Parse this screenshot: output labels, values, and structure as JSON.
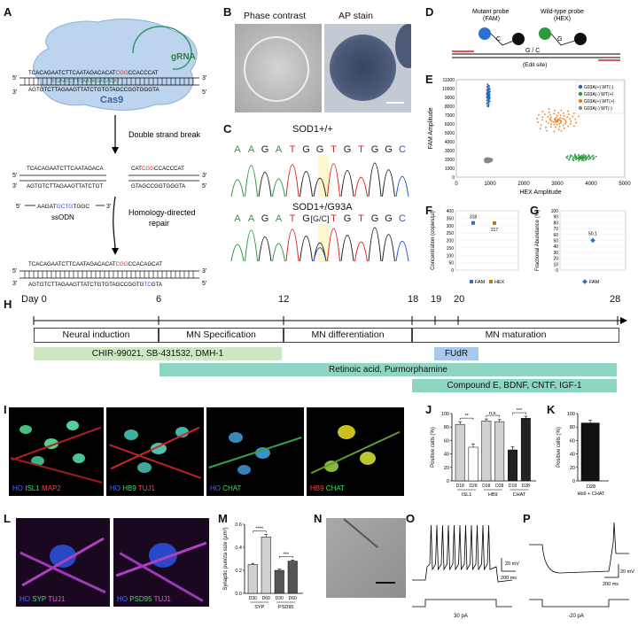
{
  "panels": {
    "A": "A",
    "B": "B",
    "C": "C",
    "D": "D",
    "E": "E",
    "F": "F",
    "G": "G",
    "H": "H",
    "I": "I",
    "J": "J",
    "K": "K",
    "L": "L",
    "M": "M",
    "N": "N",
    "O": "O",
    "P": "P"
  },
  "panelA": {
    "top_seq": "TCACAGAATCTTCAATAGACACATCGGCCACCCAT",
    "top_seq_prefix": "TCACAGAATCTTCAATAGACACAT",
    "top_seq_pam": "CGG",
    "top_seq_suffix": "CCACCCAT",
    "bot_seq": "AGTGTCTTAGAAGTTATCTGTGTAGCCGGTGGGTA",
    "grna_seq": "5'GAATCTTCAATAGACACAT",
    "grna_label": "gRNA",
    "cas9_label": "Cas9",
    "step1": "Double strand break",
    "left_top": "TCACAGAATCTTCAATAGACA",
    "left_bot": "AGTGTCTTAGAAGTTATCTGT",
    "right_top_pre": "CAT",
    "right_top_pam": "CGG",
    "right_top_post": "CCACCCAT",
    "right_bot": "GTAGCCGGTGGGTA",
    "ssodn_pre": "AAGAT",
    "ssodn_mut": "GCTG",
    "ssodn_post": "TGGC",
    "ssodn_label": "ssODN",
    "step2": "Homology-directed",
    "step2b": "repair",
    "final_top_pre": "TCACAGAATCTTCAATAGACACAT",
    "final_top_pam": "CGG",
    "final_top_post": "CCACAGCAT",
    "final_bot_pre": "AGTGTCTTAGAAGTTATCTGTGTAGCCGGTG",
    "final_bot_mut": "TC",
    "final_bot_post": "GTA",
    "five": "5'",
    "three": "3'"
  },
  "panelB": {
    "left": "Phase contrast",
    "right": "AP stain"
  },
  "panelC": {
    "title1": "SOD1+/+",
    "title2": "SOD1+/G93A",
    "bases1": [
      "A",
      "A",
      "G",
      "A",
      "T",
      "G",
      "G",
      "T",
      "G",
      "T",
      "G",
      "G",
      "C"
    ],
    "bases2": [
      "A",
      "A",
      "G",
      "A",
      "T",
      "G",
      "[G/C]",
      "T",
      "G",
      "T",
      "G",
      "G",
      "C"
    ]
  },
  "panelD": {
    "mutant_probe": "Mutant probe",
    "mutant_dye": "(FAM)",
    "wt_probe": "Wild-type probe",
    "wt_dye": "(HEX)",
    "c_label": "C",
    "g_label": "G",
    "gc_label": "G / C",
    "edit_site": "(Edit site)"
  },
  "panelE": {
    "legend": [
      "G93A(+) WT(-)",
      "G93A(-) WT(+)",
      "G93A(+) WT(+)",
      "G93A(-) WT(-)"
    ],
    "legend_colors": [
      "#2266bb",
      "#2a9a3c",
      "#f07a1e",
      "#888888"
    ],
    "xlabel": "HEX Amplitude",
    "ylabel": "FAM Amplitude",
    "xticks": [
      "0",
      "1000",
      "2000",
      "3000",
      "4000",
      "5000"
    ],
    "yticks": [
      "0",
      "1000",
      "2000",
      "3000",
      "4000",
      "5000",
      "6000",
      "7000",
      "8000",
      "9000",
      "10000",
      "11000"
    ]
  },
  "panelF": {
    "ylabel": "Concentration (copies/µl)",
    "yticks": [
      "0",
      "50",
      "100",
      "150",
      "200",
      "250",
      "300",
      "350",
      "400"
    ],
    "fam_label": "318",
    "hex_label": "317",
    "legend_fam": "FAM",
    "legend_hex": "HEX"
  },
  "panelG": {
    "ylabel": "Fractional Abundance (%)",
    "yticks": [
      "0",
      "10",
      "20",
      "30",
      "40",
      "50",
      "60",
      "70",
      "80",
      "90",
      "100"
    ],
    "point_label": "50.1",
    "legend": "FAM"
  },
  "panelH": {
    "day_label": "Day 0",
    "days": [
      "6",
      "12",
      "18",
      "19",
      "20",
      "28"
    ],
    "stages": [
      "Neural induction",
      "MN Specification",
      "MN differentiation",
      "MN maturation"
    ],
    "drugs1": "CHIR-99021, SB-431532, DMH-1",
    "drugs2": "Retinoic acid, Purmorphamine",
    "drugs3": "Compound E, BDNF, CNTF, IGF-1",
    "fudr": "FUdR"
  },
  "panelI": {
    "img1": [
      "HO",
      "ISL1",
      "MAP2"
    ],
    "img2": [
      "HO",
      "HB9",
      "TUJ1"
    ],
    "img3": [
      "HO",
      "CHAT"
    ],
    "img4": [
      "HB9",
      "CHAT"
    ]
  },
  "panelJ": {
    "ylabel": "Positive cells (%)",
    "yticks": [
      "0",
      "20",
      "40",
      "60",
      "80",
      "100"
    ],
    "groups": [
      "ISL1",
      "HB9",
      "CHAT"
    ],
    "sublabels": [
      "D18",
      "D28"
    ],
    "sig": [
      "**",
      "n.s.",
      "***"
    ]
  },
  "panelK": {
    "ylabel": "Positive cells (%)",
    "yticks": [
      "0",
      "20",
      "40",
      "60",
      "80",
      "100"
    ],
    "xlabel1": "D28",
    "xlabel2": "Hb9 + CHAT"
  },
  "panelL": {
    "img1": [
      "HO",
      "SYP",
      "TUJ1"
    ],
    "img2": [
      "HO",
      "PSD95",
      "TUJ1"
    ]
  },
  "panelM": {
    "ylabel": "Synaptic puncta size (µm²)",
    "yticks": [
      "0.0",
      "0.2",
      "0.4",
      "0.6"
    ],
    "groups": [
      "SYP",
      "PSD95"
    ],
    "sublabels": [
      "D30",
      "D60"
    ],
    "sig": [
      "****",
      "***"
    ]
  },
  "panelO": {
    "v_scale": "20 mV",
    "t_scale": "200 ms",
    "stim": "30 pA"
  },
  "panelP": {
    "v_scale": "20 mV",
    "t_scale": "200 ms",
    "stim": "-20 pA"
  },
  "chart_data": [
    {
      "type": "scatter",
      "panel": "E",
      "xlabel": "HEX Amplitude",
      "ylabel": "FAM Amplitude",
      "xlim": [
        0,
        5000
      ],
      "ylim": [
        0,
        11000
      ],
      "series": [
        {
          "name": "G93A(+) WT(-)",
          "clusters": [
            {
              "x": 950,
              "y": 9200
            }
          ]
        },
        {
          "name": "G93A(-) WT(+)",
          "clusters": [
            {
              "x": 3700,
              "y": 2200
            }
          ]
        },
        {
          "name": "G93A(+) WT(+)",
          "clusters": [
            {
              "x": 3000,
              "y": 6400
            }
          ]
        },
        {
          "name": "G93A(-) WT(-)",
          "clusters": [
            {
              "x": 950,
              "y": 1900
            }
          ]
        }
      ]
    },
    {
      "type": "scatter",
      "panel": "F",
      "ylabel": "Concentration (copies/µl)",
      "ylim": [
        0,
        400
      ],
      "series": [
        {
          "name": "FAM",
          "values": [
            318
          ]
        },
        {
          "name": "HEX",
          "values": [
            317
          ]
        }
      ]
    },
    {
      "type": "scatter",
      "panel": "G",
      "ylabel": "Fractional Abundance (%)",
      "ylim": [
        0,
        100
      ],
      "series": [
        {
          "name": "FAM",
          "values": [
            50.1
          ]
        }
      ]
    },
    {
      "type": "bar",
      "panel": "J",
      "ylabel": "Positive cells (%)",
      "ylim": [
        0,
        100
      ],
      "categories": [
        "ISL1 D18",
        "ISL1 D28",
        "HB9 D18",
        "HB9 D28",
        "CHAT D18",
        "CHAT D28"
      ],
      "values": [
        84,
        50,
        89,
        88,
        46,
        93
      ],
      "errors": [
        4,
        5,
        3,
        3,
        5,
        3
      ]
    },
    {
      "type": "bar",
      "panel": "K",
      "ylabel": "Positive cells (%)",
      "ylim": [
        0,
        100
      ],
      "categories": [
        "D28 Hb9 + CHAT"
      ],
      "values": [
        86
      ],
      "errors": [
        4
      ]
    },
    {
      "type": "bar",
      "panel": "M",
      "ylabel": "Synaptic puncta size (µm²)",
      "ylim": [
        0,
        0.6
      ],
      "categories": [
        "SYP D30",
        "SYP D60",
        "PSD95 D30",
        "PSD95 D60"
      ],
      "values": [
        0.25,
        0.49,
        0.2,
        0.28
      ],
      "errors": [
        0.01,
        0.02,
        0.01,
        0.01
      ]
    }
  ]
}
